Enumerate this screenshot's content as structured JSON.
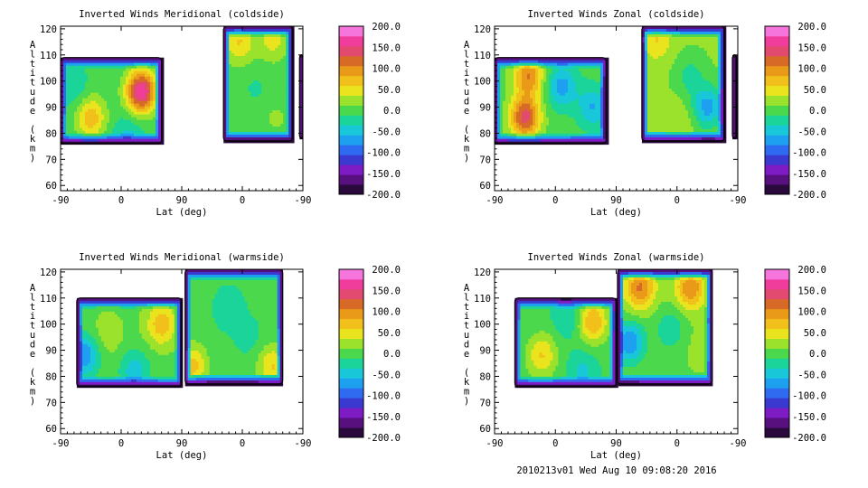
{
  "footer": {
    "stamp": "2010213v01 Wed Aug 10 09:08:20 2016"
  },
  "palette": [
    "#2a0a3c",
    "#57107d",
    "#7d1cc5",
    "#3a3ad0",
    "#2f6bf0",
    "#1ea0f0",
    "#19c8d8",
    "#1ad49a",
    "#4cd84c",
    "#9be22c",
    "#e9e41e",
    "#f2c01a",
    "#e99a18",
    "#d86a28",
    "#e24a70",
    "#f03c9a",
    "#f575dd"
  ],
  "chart_data": [
    {
      "type": "heatmap",
      "title": "Inverted Winds Meridional (coldside)",
      "xlabel": "Lat (deg)",
      "ylabel": "Altitude (km)",
      "x_ticks": [
        "-90",
        "0",
        "90",
        "0",
        "-90"
      ],
      "y_ticks": [
        "60",
        "70",
        "80",
        "90",
        "100",
        "110",
        "120"
      ],
      "ylim": [
        58,
        121
      ],
      "colorbar_ticks": [
        "200.0",
        "150.0",
        "100.0",
        "50.0",
        "0.0",
        "-50.0",
        "-100.0",
        "-150.0",
        "-200.0"
      ],
      "clim": [
        -200,
        200
      ],
      "regions": [
        {
          "x": [
            -90,
            60
          ],
          "y": [
            76,
            109
          ],
          "base": -5,
          "blobs": [
            {
              "x": -45,
              "y": 86,
              "value": 75
            },
            {
              "x": 30,
              "y": 96,
              "value": 170
            },
            {
              "x": -70,
              "y": 97,
              "value": -30
            },
            {
              "x": 10,
              "y": 78,
              "value": -45
            }
          ]
        },
        {
          "x": [
            152,
            255
          ],
          "y": [
            77,
            121
          ],
          "base": 0,
          "blobs": [
            {
              "x": 175,
              "y": 115,
              "value": 60
            },
            {
              "x": 225,
              "y": 116,
              "value": 45
            },
            {
              "x": 200,
              "y": 97,
              "value": -15
            },
            {
              "x": 230,
              "y": 86,
              "value": 15
            }
          ]
        },
        {
          "x": [
            265,
            270
          ],
          "y": [
            78,
            110
          ],
          "base": -80,
          "blobs": []
        }
      ]
    },
    {
      "type": "heatmap",
      "title": "Inverted Winds Zonal (coldside)",
      "xlabel": "Lat (deg)",
      "ylabel": "Altitude (km)",
      "x_ticks": [
        "-90",
        "0",
        "90",
        "0",
        "-90"
      ],
      "y_ticks": [
        "60",
        "70",
        "80",
        "90",
        "100",
        "110",
        "120"
      ],
      "ylim": [
        58,
        121
      ],
      "colorbar_ticks": [
        "200.0",
        "150.0",
        "100.0",
        "50.0",
        "0.0",
        "-50.0",
        "-100.0",
        "-150.0",
        "-200.0"
      ],
      "clim": [
        -200,
        200
      ],
      "regions": [
        {
          "x": [
            -90,
            75
          ],
          "y": [
            76,
            109
          ],
          "base": 0,
          "blobs": [
            {
              "x": -45,
              "y": 86,
              "value": 140
            },
            {
              "x": -40,
              "y": 102,
              "value": 105
            },
            {
              "x": 10,
              "y": 98,
              "value": -70
            },
            {
              "x": 55,
              "y": 90,
              "value": -60
            }
          ]
        },
        {
          "x": [
            128,
            250
          ],
          "y": [
            77,
            121
          ],
          "base": 15,
          "blobs": [
            {
              "x": 150,
              "y": 116,
              "value": 60
            },
            {
              "x": 225,
              "y": 90,
              "value": -70
            },
            {
              "x": 200,
              "y": 102,
              "value": -20
            },
            {
              "x": 185,
              "y": 84,
              "value": 35
            }
          ]
        },
        {
          "x": [
            262,
            268
          ],
          "y": [
            78,
            110
          ],
          "base": -80,
          "blobs": []
        }
      ]
    },
    {
      "type": "heatmap",
      "title": "Inverted Winds Meridional (warmside)",
      "xlabel": "Lat (deg)",
      "ylabel": "Altitude (km)",
      "x_ticks": [
        "-90",
        "0",
        "90",
        "0",
        "-90"
      ],
      "y_ticks": [
        "60",
        "70",
        "80",
        "90",
        "100",
        "110",
        "120"
      ],
      "ylim": [
        58,
        121
      ],
      "colorbar_ticks": [
        "200.0",
        "150.0",
        "100.0",
        "50.0",
        "0.0",
        "-50.0",
        "-100.0",
        "-150.0",
        "-200.0"
      ],
      "clim": [
        -200,
        200
      ],
      "regions": [
        {
          "x": [
            -66,
            90
          ],
          "y": [
            76,
            110
          ],
          "base": 5,
          "blobs": [
            {
              "x": 60,
              "y": 100,
              "value": 75
            },
            {
              "x": -20,
              "y": 96,
              "value": 30
            },
            {
              "x": 20,
              "y": 82,
              "value": -50
            },
            {
              "x": -55,
              "y": 88,
              "value": -80
            }
          ]
        },
        {
          "x": [
            95,
            240
          ],
          "y": [
            77,
            121
          ],
          "base": -5,
          "blobs": [
            {
              "x": 105,
              "y": 84,
              "value": 70
            },
            {
              "x": 225,
              "y": 84,
              "value": 60
            },
            {
              "x": 160,
              "y": 106,
              "value": -30
            },
            {
              "x": 190,
              "y": 95,
              "value": -20
            }
          ]
        }
      ]
    },
    {
      "type": "heatmap",
      "title": "Inverted Winds Zonal (warmside)",
      "xlabel": "Lat (deg)",
      "ylabel": "Altitude (km)",
      "x_ticks": [
        "-90",
        "0",
        "90",
        "0",
        "-90"
      ],
      "y_ticks": [
        "60",
        "70",
        "80",
        "90",
        "100",
        "110",
        "120"
      ],
      "ylim": [
        58,
        121
      ],
      "colorbar_ticks": [
        "200.0",
        "150.0",
        "100.0",
        "50.0",
        "0.0",
        "-50.0",
        "-100.0",
        "-150.0",
        "-200.0"
      ],
      "clim": [
        -200,
        200
      ],
      "regions": [
        {
          "x": [
            -60,
            90
          ],
          "y": [
            76,
            110
          ],
          "base": -5,
          "blobs": [
            {
              "x": -20,
              "y": 88,
              "value": 60
            },
            {
              "x": 55,
              "y": 101,
              "value": 85
            },
            {
              "x": 20,
              "y": 103,
              "value": -40
            },
            {
              "x": 40,
              "y": 82,
              "value": -40
            }
          ]
        },
        {
          "x": [
            92,
            232
          ],
          "y": [
            77,
            121
          ],
          "base": 10,
          "blobs": [
            {
              "x": 125,
              "y": 114,
              "value": 110
            },
            {
              "x": 200,
              "y": 114,
              "value": 105
            },
            {
              "x": 110,
              "y": 93,
              "value": -80
            },
            {
              "x": 170,
              "y": 98,
              "value": -30
            },
            {
              "x": 215,
              "y": 92,
              "value": 20
            }
          ]
        }
      ]
    }
  ]
}
